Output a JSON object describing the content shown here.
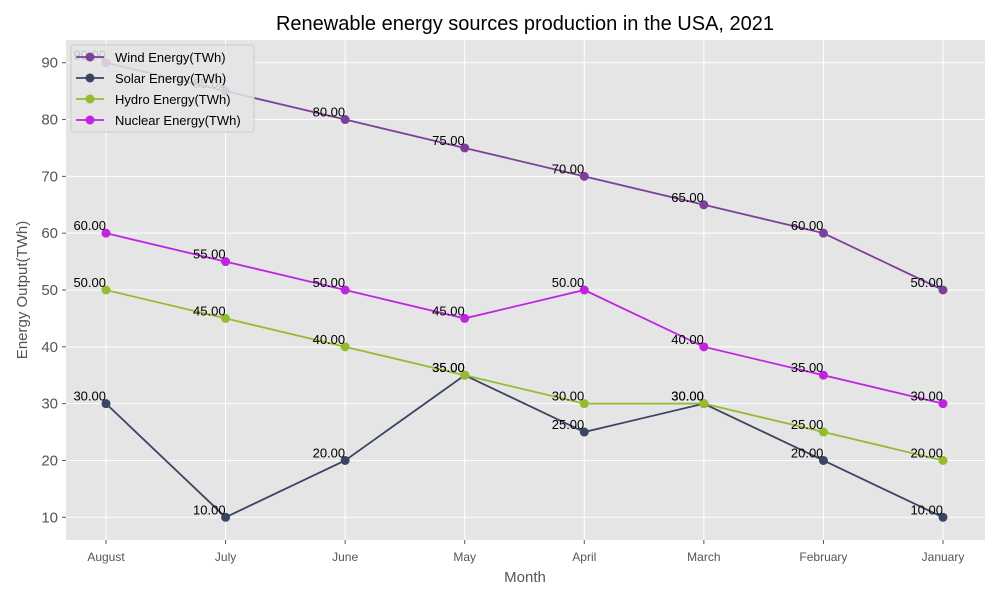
{
  "chart_data": {
    "type": "line",
    "title": "Renewable energy sources production in the USA, 2021",
    "xlabel": "Month",
    "ylabel": "Energy Output(TWh)",
    "categories": [
      "August",
      "July",
      "June",
      "May",
      "April",
      "March",
      "February",
      "January"
    ],
    "ylim": [
      6,
      94
    ],
    "yticks": [
      10,
      20,
      30,
      40,
      50,
      60,
      70,
      80,
      90
    ],
    "grid": true,
    "legend_position": "top-left",
    "series": [
      {
        "name": "Wind Energy(TWh)",
        "color": "#7e3f98",
        "values": [
          90,
          85,
          80,
          75,
          70,
          65,
          60,
          50
        ]
      },
      {
        "name": "Solar Energy(TWh)",
        "color": "#394562",
        "values": [
          30,
          10,
          20,
          35,
          25,
          30,
          20,
          10
        ]
      },
      {
        "name": "Hydro Energy(TWh)",
        "color": "#95bb2f",
        "values": [
          50,
          45,
          40,
          35,
          30,
          30,
          25,
          20
        ]
      },
      {
        "name": "Nuclear Energy(TWh)",
        "color": "#c024e0",
        "values": [
          60,
          55,
          50,
          45,
          50,
          40,
          35,
          30
        ]
      }
    ]
  }
}
